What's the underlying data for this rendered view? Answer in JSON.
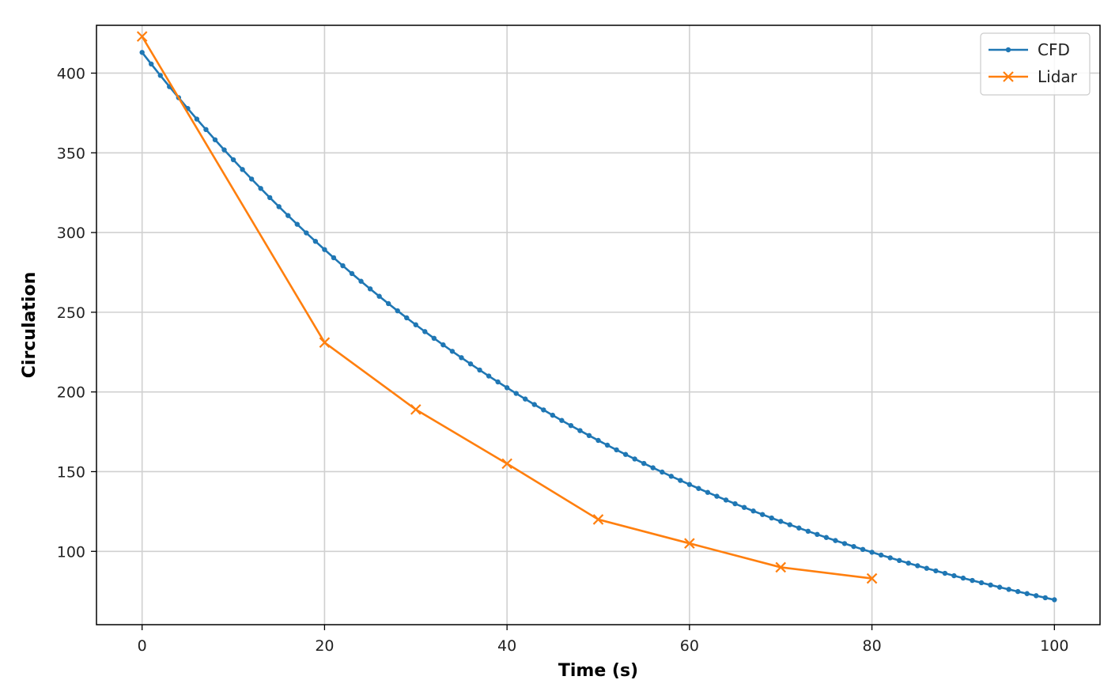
{
  "chart_data": {
    "type": "line",
    "title": "",
    "xlabel": "Time (s)",
    "ylabel": "Circulation",
    "xlim": [
      -5,
      105
    ],
    "ylim": [
      54,
      430
    ],
    "xticks": [
      0,
      20,
      40,
      60,
      80,
      100
    ],
    "yticks": [
      100,
      150,
      200,
      250,
      300,
      350,
      400
    ],
    "grid": true,
    "legend_position": "top-right",
    "series": [
      {
        "name": "CFD",
        "color": "#1f77b4",
        "marker": "point",
        "decay": {
          "y0": 413,
          "rate": 0.0178,
          "x_start": 0,
          "x_end": 100,
          "step": 1
        }
      },
      {
        "name": "Lidar",
        "color": "#ff7f0e",
        "marker": "x",
        "points": [
          {
            "x": 0,
            "y": 423
          },
          {
            "x": 20,
            "y": 231
          },
          {
            "x": 30,
            "y": 189
          },
          {
            "x": 40,
            "y": 155
          },
          {
            "x": 50,
            "y": 120
          },
          {
            "x": 60,
            "y": 105
          },
          {
            "x": 70,
            "y": 90
          },
          {
            "x": 80,
            "y": 83
          }
        ]
      }
    ]
  }
}
